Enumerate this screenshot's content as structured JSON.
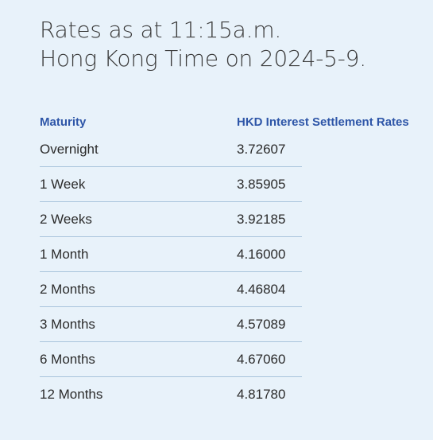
{
  "heading": {
    "line1": "Rates as at 11:15a.m.",
    "line2": "Hong Kong Time on 2024-5-9."
  },
  "table": {
    "headers": {
      "maturity": "Maturity",
      "rate": "HKD Interest Settlement Rates"
    },
    "rows": [
      {
        "maturity": "Overnight",
        "rate": "3.72607"
      },
      {
        "maturity": "1 Week",
        "rate": "3.85905"
      },
      {
        "maturity": "2 Weeks",
        "rate": "3.92185"
      },
      {
        "maturity": "1 Month",
        "rate": "4.16000"
      },
      {
        "maturity": "2 Months",
        "rate": "4.46804"
      },
      {
        "maturity": "3 Months",
        "rate": "4.57089"
      },
      {
        "maturity": "6 Months",
        "rate": "4.67060"
      },
      {
        "maturity": "12 Months",
        "rate": "4.81780"
      }
    ]
  }
}
